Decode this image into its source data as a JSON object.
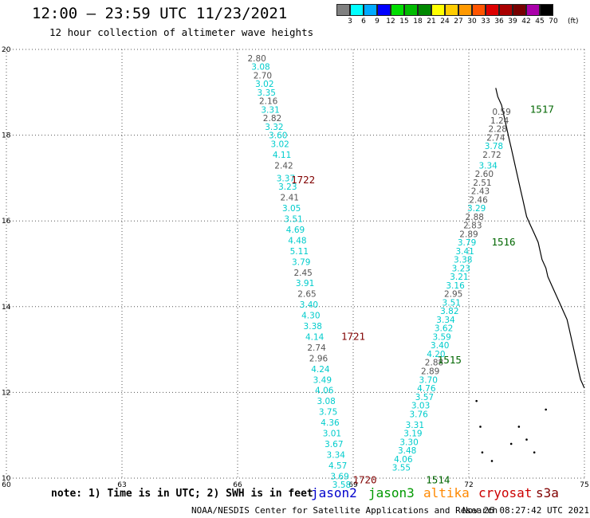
{
  "header": {
    "title": "12:00 – 23:59 UTC 11/23/2021",
    "subtitle": "12 hour collection of altimeter wave heights"
  },
  "color_scale": {
    "unit": "(ft)",
    "labels": [
      "3",
      "6",
      "9",
      "12",
      "15",
      "18",
      "21",
      "24",
      "27",
      "30",
      "33",
      "36",
      "39",
      "42",
      "45",
      "70"
    ],
    "colors": [
      "#808080",
      "#00ffff",
      "#00aaff",
      "#0000ff",
      "#00dd00",
      "#00bb00",
      "#008800",
      "#ffff00",
      "#ffcc00",
      "#ff9900",
      "#ff5500",
      "#dd0000",
      "#aa0000",
      "#770000",
      "#aa00aa",
      "#000000"
    ]
  },
  "map": {
    "x_ticks": [
      "60",
      "63",
      "66",
      "69",
      "72",
      "75"
    ],
    "y_ticks": [
      "10",
      "12",
      "14",
      "16",
      "18",
      "20"
    ],
    "x_range": [
      60,
      75
    ],
    "y_range": [
      10,
      20
    ]
  },
  "chart_data": {
    "type": "scatter",
    "tracks": [
      {
        "pass": "1722",
        "pass_label_pos": {
          "lon": 67.7,
          "lat": 16.95
        },
        "pass_color": "#800000",
        "points": [
          {
            "lon": 66.5,
            "lat": 19.8,
            "v": "2.80",
            "c": "#555555"
          },
          {
            "lon": 66.6,
            "lat": 19.6,
            "v": "3.08",
            "c": "#00cccc"
          },
          {
            "lon": 66.65,
            "lat": 19.4,
            "v": "2.70",
            "c": "#555555"
          },
          {
            "lon": 66.7,
            "lat": 19.2,
            "v": "3.02",
            "c": "#00cccc"
          },
          {
            "lon": 66.75,
            "lat": 19.0,
            "v": "3.35",
            "c": "#00cccc"
          },
          {
            "lon": 66.8,
            "lat": 18.8,
            "v": "2.16",
            "c": "#555555"
          },
          {
            "lon": 66.85,
            "lat": 18.6,
            "v": "3.31",
            "c": "#00cccc"
          },
          {
            "lon": 66.9,
            "lat": 18.4,
            "v": "2.82",
            "c": "#555555"
          },
          {
            "lon": 66.95,
            "lat": 18.2,
            "v": "3.32",
            "c": "#00cccc"
          },
          {
            "lon": 67.05,
            "lat": 18.0,
            "v": "3.60",
            "c": "#00cccc"
          },
          {
            "lon": 67.1,
            "lat": 17.8,
            "v": "3.02",
            "c": "#00cccc"
          },
          {
            "lon": 67.15,
            "lat": 17.55,
            "v": "4.11",
            "c": "#00cccc"
          },
          {
            "lon": 67.2,
            "lat": 17.3,
            "v": "2.42",
            "c": "#555555"
          },
          {
            "lon": 67.25,
            "lat": 17.0,
            "v": "3.37",
            "c": "#00cccc"
          },
          {
            "lon": 67.3,
            "lat": 16.8,
            "v": "3.23",
            "c": "#00cccc"
          },
          {
            "lon": 67.35,
            "lat": 16.55,
            "v": "2.41",
            "c": "#555555"
          },
          {
            "lon": 67.4,
            "lat": 16.3,
            "v": "3.05",
            "c": "#00cccc"
          },
          {
            "lon": 67.45,
            "lat": 16.05,
            "v": "3.51",
            "c": "#00cccc"
          },
          {
            "lon": 67.5,
            "lat": 15.8,
            "v": "4.69",
            "c": "#00cccc"
          },
          {
            "lon": 67.55,
            "lat": 15.55,
            "v": "4.48",
            "c": "#00cccc"
          },
          {
            "lon": 67.6,
            "lat": 15.3,
            "v": "5.11",
            "c": "#00cccc"
          },
          {
            "lon": 67.65,
            "lat": 15.05,
            "v": "3.79",
            "c": "#00cccc"
          }
        ]
      },
      {
        "pass": "1721",
        "pass_label_pos": {
          "lon": 69.0,
          "lat": 13.3
        },
        "pass_color": "#800000",
        "points": [
          {
            "lon": 67.7,
            "lat": 14.8,
            "v": "2.45",
            "c": "#555555"
          },
          {
            "lon": 67.75,
            "lat": 14.55,
            "v": "3.91",
            "c": "#00cccc"
          },
          {
            "lon": 67.8,
            "lat": 14.3,
            "v": "2.65",
            "c": "#555555"
          },
          {
            "lon": 67.85,
            "lat": 14.05,
            "v": "3.40",
            "c": "#00cccc"
          },
          {
            "lon": 67.9,
            "lat": 13.8,
            "v": "4.30",
            "c": "#00cccc"
          },
          {
            "lon": 67.95,
            "lat": 13.55,
            "v": "3.38",
            "c": "#00cccc"
          },
          {
            "lon": 68.0,
            "lat": 13.3,
            "v": "4.14",
            "c": "#00cccc"
          },
          {
            "lon": 68.05,
            "lat": 13.05,
            "v": "2.74",
            "c": "#555555"
          },
          {
            "lon": 68.1,
            "lat": 12.8,
            "v": "2.96",
            "c": "#555555"
          },
          {
            "lon": 68.15,
            "lat": 12.55,
            "v": "4.24",
            "c": "#00cccc"
          },
          {
            "lon": 68.2,
            "lat": 12.3,
            "v": "3.49",
            "c": "#00cccc"
          },
          {
            "lon": 68.25,
            "lat": 12.05,
            "v": "4.06",
            "c": "#00cccc"
          },
          {
            "lon": 68.3,
            "lat": 11.8,
            "v": "3.08",
            "c": "#00cccc"
          },
          {
            "lon": 68.35,
            "lat": 11.55,
            "v": "3.75",
            "c": "#00cccc"
          },
          {
            "lon": 68.4,
            "lat": 11.3,
            "v": "4.36",
            "c": "#00cccc"
          },
          {
            "lon": 68.45,
            "lat": 11.05,
            "v": "3.01",
            "c": "#00cccc"
          },
          {
            "lon": 68.5,
            "lat": 10.8,
            "v": "3.67",
            "c": "#00cccc"
          },
          {
            "lon": 68.55,
            "lat": 10.55,
            "v": "3.34",
            "c": "#00cccc"
          },
          {
            "lon": 68.6,
            "lat": 10.3,
            "v": "4.57",
            "c": "#00cccc"
          },
          {
            "lon": 68.65,
            "lat": 10.05,
            "v": "3.69",
            "c": "#00cccc"
          },
          {
            "lon": 68.7,
            "lat": 9.85,
            "v": "3.58",
            "c": "#00cccc"
          }
        ]
      },
      {
        "pass": "1517",
        "pass_label_pos": {
          "lon": 73.9,
          "lat": 18.6
        },
        "pass_color": "#006600",
        "points": [
          {
            "lon": 72.85,
            "lat": 18.55,
            "v": "0.59",
            "c": "#555555"
          },
          {
            "lon": 72.8,
            "lat": 18.35,
            "v": "1.24",
            "c": "#555555"
          },
          {
            "lon": 72.75,
            "lat": 18.15,
            "v": "2.28",
            "c": "#555555"
          },
          {
            "lon": 72.7,
            "lat": 17.95,
            "v": "2.74",
            "c": "#555555"
          },
          {
            "lon": 72.65,
            "lat": 17.75,
            "v": "3.78",
            "c": "#00cccc"
          },
          {
            "lon": 72.6,
            "lat": 17.55,
            "v": "2.72",
            "c": "#555555"
          },
          {
            "lon": 72.5,
            "lat": 17.3,
            "v": "3.34",
            "c": "#00cccc"
          },
          {
            "lon": 72.4,
            "lat": 17.1,
            "v": "2.60",
            "c": "#555555"
          },
          {
            "lon": 72.35,
            "lat": 16.9,
            "v": "2.51",
            "c": "#555555"
          },
          {
            "lon": 72.3,
            "lat": 16.7,
            "v": "2.43",
            "c": "#555555"
          },
          {
            "lon": 72.25,
            "lat": 16.5,
            "v": "2.46",
            "c": "#555555"
          }
        ]
      },
      {
        "pass": "1516",
        "pass_label_pos": {
          "lon": 72.9,
          "lat": 15.5
        },
        "pass_color": "#006600",
        "points": [
          {
            "lon": 72.2,
            "lat": 16.3,
            "v": "3.29",
            "c": "#00cccc"
          },
          {
            "lon": 72.15,
            "lat": 16.1,
            "v": "2.88",
            "c": "#555555"
          },
          {
            "lon": 72.1,
            "lat": 15.9,
            "v": "2.83",
            "c": "#555555"
          },
          {
            "lon": 72.0,
            "lat": 15.7,
            "v": "2.89",
            "c": "#555555"
          },
          {
            "lon": 71.95,
            "lat": 15.5,
            "v": "3.79",
            "c": "#00cccc"
          },
          {
            "lon": 71.9,
            "lat": 15.3,
            "v": "3.41",
            "c": "#00cccc"
          },
          {
            "lon": 71.85,
            "lat": 15.1,
            "v": "3.38",
            "c": "#00cccc"
          },
          {
            "lon": 71.8,
            "lat": 14.9,
            "v": "3.23",
            "c": "#00cccc"
          },
          {
            "lon": 71.75,
            "lat": 14.7,
            "v": "3.21",
            "c": "#00cccc"
          },
          {
            "lon": 71.65,
            "lat": 14.5,
            "v": "3.16",
            "c": "#00cccc"
          },
          {
            "lon": 71.6,
            "lat": 14.3,
            "v": "2.95",
            "c": "#555555"
          },
          {
            "lon": 71.55,
            "lat": 14.1,
            "v": "3.51",
            "c": "#00cccc"
          }
        ]
      },
      {
        "pass": "1515",
        "pass_label_pos": {
          "lon": 71.5,
          "lat": 12.75
        },
        "pass_color": "#006600",
        "points": [
          {
            "lon": 71.5,
            "lat": 13.9,
            "v": "3.82",
            "c": "#00cccc"
          },
          {
            "lon": 71.4,
            "lat": 13.7,
            "v": "3.34",
            "c": "#00cccc"
          },
          {
            "lon": 71.35,
            "lat": 13.5,
            "v": "3.62",
            "c": "#00cccc"
          },
          {
            "lon": 71.3,
            "lat": 13.3,
            "v": "3.59",
            "c": "#00cccc"
          },
          {
            "lon": 71.25,
            "lat": 13.1,
            "v": "3.40",
            "c": "#00cccc"
          },
          {
            "lon": 71.15,
            "lat": 12.9,
            "v": "4.20",
            "c": "#00cccc"
          },
          {
            "lon": 71.1,
            "lat": 12.7,
            "v": "2.88",
            "c": "#555555"
          },
          {
            "lon": 71.0,
            "lat": 12.5,
            "v": "2.89",
            "c": "#555555"
          },
          {
            "lon": 70.95,
            "lat": 12.3,
            "v": "3.70",
            "c": "#00cccc"
          },
          {
            "lon": 70.9,
            "lat": 12.1,
            "v": "4.76",
            "c": "#00cccc"
          },
          {
            "lon": 70.85,
            "lat": 11.9,
            "v": "3.57",
            "c": "#00cccc"
          }
        ]
      },
      {
        "pass": "1514",
        "pass_label_pos": {
          "lon": 71.2,
          "lat": 9.95
        },
        "pass_color": "#006600",
        "points": [
          {
            "lon": 70.75,
            "lat": 11.7,
            "v": "3.03",
            "c": "#00cccc"
          },
          {
            "lon": 70.7,
            "lat": 11.5,
            "v": "3.76",
            "c": "#00cccc"
          },
          {
            "lon": 70.6,
            "lat": 11.25,
            "v": "3.31",
            "c": "#00cccc"
          },
          {
            "lon": 70.55,
            "lat": 11.05,
            "v": "3.19",
            "c": "#00cccc"
          },
          {
            "lon": 70.45,
            "lat": 10.85,
            "v": "3.30",
            "c": "#00cccc"
          },
          {
            "lon": 70.4,
            "lat": 10.65,
            "v": "3.48",
            "c": "#00cccc"
          },
          {
            "lon": 70.3,
            "lat": 10.45,
            "v": "4.06",
            "c": "#00cccc"
          },
          {
            "lon": 70.25,
            "lat": 10.25,
            "v": "3.55",
            "c": "#00cccc"
          }
        ]
      },
      {
        "pass": "1720",
        "pass_label_pos": {
          "lon": 69.3,
          "lat": 9.95
        },
        "pass_color": "#800000",
        "points": []
      }
    ],
    "coastline": [
      [
        72.7,
        19.1
      ],
      [
        72.75,
        18.9
      ],
      [
        72.85,
        18.7
      ],
      [
        72.9,
        18.5
      ],
      [
        72.95,
        18.3
      ],
      [
        73.0,
        18.1
      ],
      [
        73.05,
        17.9
      ],
      [
        73.1,
        17.7
      ],
      [
        73.15,
        17.5
      ],
      [
        73.2,
        17.3
      ],
      [
        73.25,
        17.1
      ],
      [
        73.3,
        16.9
      ],
      [
        73.35,
        16.7
      ],
      [
        73.4,
        16.5
      ],
      [
        73.45,
        16.3
      ],
      [
        73.5,
        16.1
      ],
      [
        73.6,
        15.9
      ],
      [
        73.7,
        15.7
      ],
      [
        73.8,
        15.5
      ],
      [
        73.85,
        15.3
      ],
      [
        73.9,
        15.1
      ],
      [
        74.0,
        14.9
      ],
      [
        74.05,
        14.7
      ],
      [
        74.15,
        14.5
      ],
      [
        74.25,
        14.3
      ],
      [
        74.35,
        14.1
      ],
      [
        74.45,
        13.9
      ],
      [
        74.55,
        13.7
      ],
      [
        74.6,
        13.5
      ],
      [
        74.65,
        13.3
      ],
      [
        74.7,
        13.1
      ],
      [
        74.75,
        12.9
      ],
      [
        74.8,
        12.7
      ],
      [
        74.85,
        12.5
      ],
      [
        74.9,
        12.3
      ],
      [
        75.0,
        12.1
      ]
    ]
  },
  "legend": {
    "note": "note: 1) Time is in UTC; 2) SWH is in feet",
    "satellites": [
      {
        "name": "jason2",
        "color": "#0000cc"
      },
      {
        "name": "jason3",
        "color": "#009900"
      },
      {
        "name": "altika",
        "color": "#ff8800"
      },
      {
        "name": "cryosat",
        "color": "#cc0000"
      },
      {
        "name": "s3a",
        "color": "#800000"
      }
    ]
  },
  "footer": {
    "source": "NOAA/NESDIS Center for Satellite Applications and Research",
    "timestamp": "Nov 26 08:27:42 UTC 2021"
  }
}
